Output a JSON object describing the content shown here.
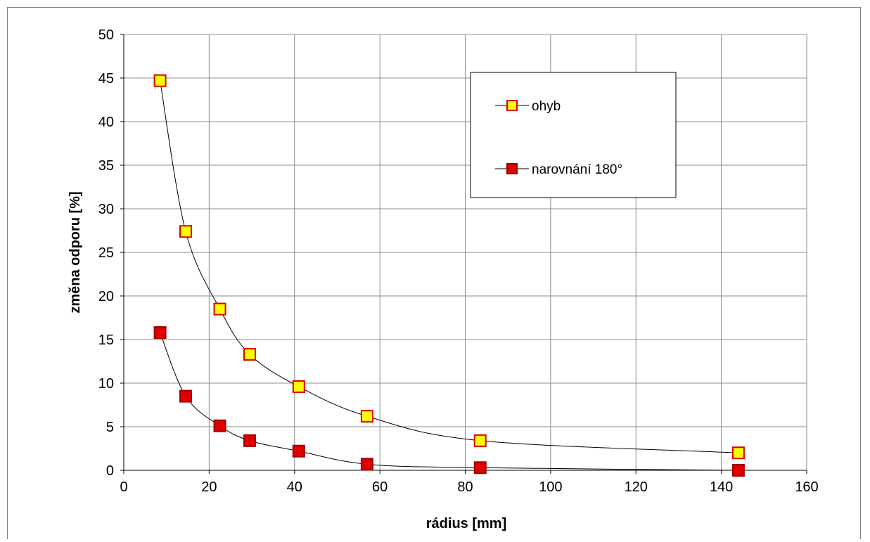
{
  "chart_data": {
    "type": "scatter",
    "xlabel": "rádius [mm]",
    "ylabel": "změna odporu [%]",
    "xlim": [
      0,
      160
    ],
    "ylim": [
      0,
      50
    ],
    "xticks": [
      0,
      20,
      40,
      60,
      80,
      100,
      120,
      140,
      160
    ],
    "yticks": [
      0,
      5,
      10,
      15,
      20,
      25,
      30,
      35,
      40,
      45,
      50
    ],
    "grid": true,
    "legend_position": "top-right",
    "series": [
      {
        "name": "ohyb",
        "marker_fill": "#ffff00",
        "marker_stroke": "#e00000",
        "line_color": "#000000",
        "x": [
          8.5,
          14.5,
          22.5,
          29.5,
          41,
          57,
          83.5,
          144
        ],
        "y": [
          44.7,
          27.4,
          18.5,
          13.3,
          9.6,
          6.2,
          3.4,
          2.0
        ]
      },
      {
        "name": "narovnání 180°",
        "marker_fill": "#e00000",
        "marker_stroke": "#a00000",
        "line_color": "#000000",
        "x": [
          8.5,
          14.5,
          22.5,
          29.5,
          41,
          57,
          83.5,
          144
        ],
        "y": [
          15.8,
          8.5,
          5.1,
          3.4,
          2.2,
          0.7,
          0.3,
          0.0
        ]
      }
    ]
  }
}
